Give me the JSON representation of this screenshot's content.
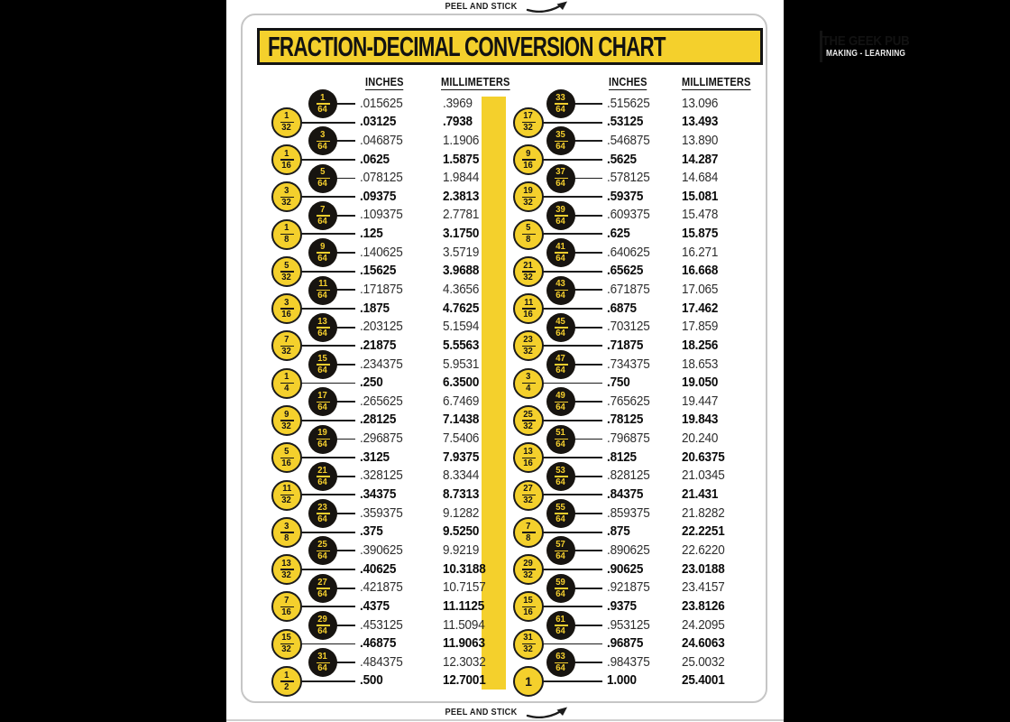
{
  "document": {
    "peel_label": "PEEL AND STICK",
    "title": "FRACTION-DECIMAL CONVERSION CHART",
    "brand": "THE GEEK PUB",
    "brand_tagline": "MAKING - LEARNING"
  },
  "headers": {
    "inches": "INCHES",
    "millimeters": "MILLIMETERS"
  },
  "colors": {
    "accent_yellow": "#f4d02c",
    "ink_black": "#171410",
    "paper_white": "#ffffff",
    "frame_gray": "#c6c6c6",
    "background_black": "#000000"
  },
  "table": {
    "left_rows": [
      {
        "num": "1",
        "den": "64",
        "circle": "black",
        "inches": ".015625",
        "mm": ".3969",
        "bold": false
      },
      {
        "num": "1",
        "den": "32",
        "circle": "yellow",
        "inches": ".03125",
        "mm": ".7938",
        "bold": true
      },
      {
        "num": "3",
        "den": "64",
        "circle": "black",
        "inches": ".046875",
        "mm": "1.1906",
        "bold": false
      },
      {
        "num": "1",
        "den": "16",
        "circle": "yellow",
        "inches": ".0625",
        "mm": "1.5875",
        "bold": true
      },
      {
        "num": "5",
        "den": "64",
        "circle": "black",
        "inches": ".078125",
        "mm": "1.9844",
        "bold": false
      },
      {
        "num": "3",
        "den": "32",
        "circle": "yellow",
        "inches": ".09375",
        "mm": "2.3813",
        "bold": true
      },
      {
        "num": "7",
        "den": "64",
        "circle": "black",
        "inches": ".109375",
        "mm": "2.7781",
        "bold": false
      },
      {
        "num": "1",
        "den": "8",
        "circle": "yellow",
        "inches": ".125",
        "mm": "3.1750",
        "bold": true
      },
      {
        "num": "9",
        "den": "64",
        "circle": "black",
        "inches": ".140625",
        "mm": "3.5719",
        "bold": false
      },
      {
        "num": "5",
        "den": "32",
        "circle": "yellow",
        "inches": ".15625",
        "mm": "3.9688",
        "bold": true
      },
      {
        "num": "11",
        "den": "64",
        "circle": "black",
        "inches": ".171875",
        "mm": "4.3656",
        "bold": false
      },
      {
        "num": "3",
        "den": "16",
        "circle": "yellow",
        "inches": ".1875",
        "mm": "4.7625",
        "bold": true
      },
      {
        "num": "13",
        "den": "64",
        "circle": "black",
        "inches": ".203125",
        "mm": "5.1594",
        "bold": false
      },
      {
        "num": "7",
        "den": "32",
        "circle": "yellow",
        "inches": ".21875",
        "mm": "5.5563",
        "bold": true
      },
      {
        "num": "15",
        "den": "64",
        "circle": "black",
        "inches": ".234375",
        "mm": "5.9531",
        "bold": false
      },
      {
        "num": "1",
        "den": "4",
        "circle": "yellow",
        "inches": ".250",
        "mm": "6.3500",
        "bold": true
      },
      {
        "num": "17",
        "den": "64",
        "circle": "black",
        "inches": ".265625",
        "mm": "6.7469",
        "bold": false
      },
      {
        "num": "9",
        "den": "32",
        "circle": "yellow",
        "inches": ".28125",
        "mm": "7.1438",
        "bold": true
      },
      {
        "num": "19",
        "den": "64",
        "circle": "black",
        "inches": ".296875",
        "mm": "7.5406",
        "bold": false
      },
      {
        "num": "5",
        "den": "16",
        "circle": "yellow",
        "inches": ".3125",
        "mm": "7.9375",
        "bold": true
      },
      {
        "num": "21",
        "den": "64",
        "circle": "black",
        "inches": ".328125",
        "mm": "8.3344",
        "bold": false
      },
      {
        "num": "11",
        "den": "32",
        "circle": "yellow",
        "inches": ".34375",
        "mm": "8.7313",
        "bold": true
      },
      {
        "num": "23",
        "den": "64",
        "circle": "black",
        "inches": ".359375",
        "mm": "9.1282",
        "bold": false
      },
      {
        "num": "3",
        "den": "8",
        "circle": "yellow",
        "inches": ".375",
        "mm": "9.5250",
        "bold": true
      },
      {
        "num": "25",
        "den": "64",
        "circle": "black",
        "inches": ".390625",
        "mm": "9.9219",
        "bold": false
      },
      {
        "num": "13",
        "den": "32",
        "circle": "yellow",
        "inches": ".40625",
        "mm": "10.3188",
        "bold": true
      },
      {
        "num": "27",
        "den": "64",
        "circle": "black",
        "inches": ".421875",
        "mm": "10.7157",
        "bold": false
      },
      {
        "num": "7",
        "den": "16",
        "circle": "yellow",
        "inches": ".4375",
        "mm": "11.1125",
        "bold": true
      },
      {
        "num": "29",
        "den": "64",
        "circle": "black",
        "inches": ".453125",
        "mm": "11.5094",
        "bold": false
      },
      {
        "num": "15",
        "den": "32",
        "circle": "yellow",
        "inches": ".46875",
        "mm": "11.9063",
        "bold": true
      },
      {
        "num": "31",
        "den": "64",
        "circle": "black",
        "inches": ".484375",
        "mm": "12.3032",
        "bold": false
      },
      {
        "num": "1",
        "den": "2",
        "circle": "yellow",
        "inches": ".500",
        "mm": "12.7001",
        "bold": true
      }
    ],
    "right_rows": [
      {
        "num": "33",
        "den": "64",
        "circle": "black",
        "inches": ".515625",
        "mm": "13.096",
        "bold": false
      },
      {
        "num": "17",
        "den": "32",
        "circle": "yellow",
        "inches": ".53125",
        "mm": "13.493",
        "bold": true
      },
      {
        "num": "35",
        "den": "64",
        "circle": "black",
        "inches": ".546875",
        "mm": "13.890",
        "bold": false
      },
      {
        "num": "9",
        "den": "16",
        "circle": "yellow",
        "inches": ".5625",
        "mm": "14.287",
        "bold": true
      },
      {
        "num": "37",
        "den": "64",
        "circle": "black",
        "inches": ".578125",
        "mm": "14.684",
        "bold": false
      },
      {
        "num": "19",
        "den": "32",
        "circle": "yellow",
        "inches": ".59375",
        "mm": "15.081",
        "bold": true
      },
      {
        "num": "39",
        "den": "64",
        "circle": "black",
        "inches": ".609375",
        "mm": "15.478",
        "bold": false
      },
      {
        "num": "5",
        "den": "8",
        "circle": "yellow",
        "inches": ".625",
        "mm": "15.875",
        "bold": true
      },
      {
        "num": "41",
        "den": "64",
        "circle": "black",
        "inches": ".640625",
        "mm": "16.271",
        "bold": false
      },
      {
        "num": "21",
        "den": "32",
        "circle": "yellow",
        "inches": ".65625",
        "mm": "16.668",
        "bold": true
      },
      {
        "num": "43",
        "den": "64",
        "circle": "black",
        "inches": ".671875",
        "mm": "17.065",
        "bold": false
      },
      {
        "num": "11",
        "den": "16",
        "circle": "yellow",
        "inches": ".6875",
        "mm": "17.462",
        "bold": true
      },
      {
        "num": "45",
        "den": "64",
        "circle": "black",
        "inches": ".703125",
        "mm": "17.859",
        "bold": false
      },
      {
        "num": "23",
        "den": "32",
        "circle": "yellow",
        "inches": ".71875",
        "mm": "18.256",
        "bold": true
      },
      {
        "num": "47",
        "den": "64",
        "circle": "black",
        "inches": ".734375",
        "mm": "18.653",
        "bold": false
      },
      {
        "num": "3",
        "den": "4",
        "circle": "yellow",
        "inches": ".750",
        "mm": "19.050",
        "bold": true
      },
      {
        "num": "49",
        "den": "64",
        "circle": "black",
        "inches": ".765625",
        "mm": "19.447",
        "bold": false
      },
      {
        "num": "25",
        "den": "32",
        "circle": "yellow",
        "inches": ".78125",
        "mm": "19.843",
        "bold": true
      },
      {
        "num": "51",
        "den": "64",
        "circle": "black",
        "inches": ".796875",
        "mm": "20.240",
        "bold": false
      },
      {
        "num": "13",
        "den": "16",
        "circle": "yellow",
        "inches": ".8125",
        "mm": "20.6375",
        "bold": true
      },
      {
        "num": "53",
        "den": "64",
        "circle": "black",
        "inches": ".828125",
        "mm": "21.0345",
        "bold": false
      },
      {
        "num": "27",
        "den": "32",
        "circle": "yellow",
        "inches": ".84375",
        "mm": "21.431",
        "bold": true
      },
      {
        "num": "55",
        "den": "64",
        "circle": "black",
        "inches": ".859375",
        "mm": "21.8282",
        "bold": false
      },
      {
        "num": "7",
        "den": "8",
        "circle": "yellow",
        "inches": ".875",
        "mm": "22.2251",
        "bold": true
      },
      {
        "num": "57",
        "den": "64",
        "circle": "black",
        "inches": ".890625",
        "mm": "22.6220",
        "bold": false
      },
      {
        "num": "29",
        "den": "32",
        "circle": "yellow",
        "inches": ".90625",
        "mm": "23.0188",
        "bold": true
      },
      {
        "num": "59",
        "den": "64",
        "circle": "black",
        "inches": ".921875",
        "mm": "23.4157",
        "bold": false
      },
      {
        "num": "15",
        "den": "16",
        "circle": "yellow",
        "inches": ".9375",
        "mm": "23.8126",
        "bold": true
      },
      {
        "num": "61",
        "den": "64",
        "circle": "black",
        "inches": ".953125",
        "mm": "24.2095",
        "bold": false
      },
      {
        "num": "31",
        "den": "32",
        "circle": "yellow",
        "inches": ".96875",
        "mm": "24.6063",
        "bold": true
      },
      {
        "num": "63",
        "den": "64",
        "circle": "black",
        "inches": ".984375",
        "mm": "25.0032",
        "bold": false
      },
      {
        "num": "1",
        "den": "",
        "circle": "yellow",
        "inches": "1.000",
        "mm": "25.4001",
        "bold": true
      }
    ]
  }
}
